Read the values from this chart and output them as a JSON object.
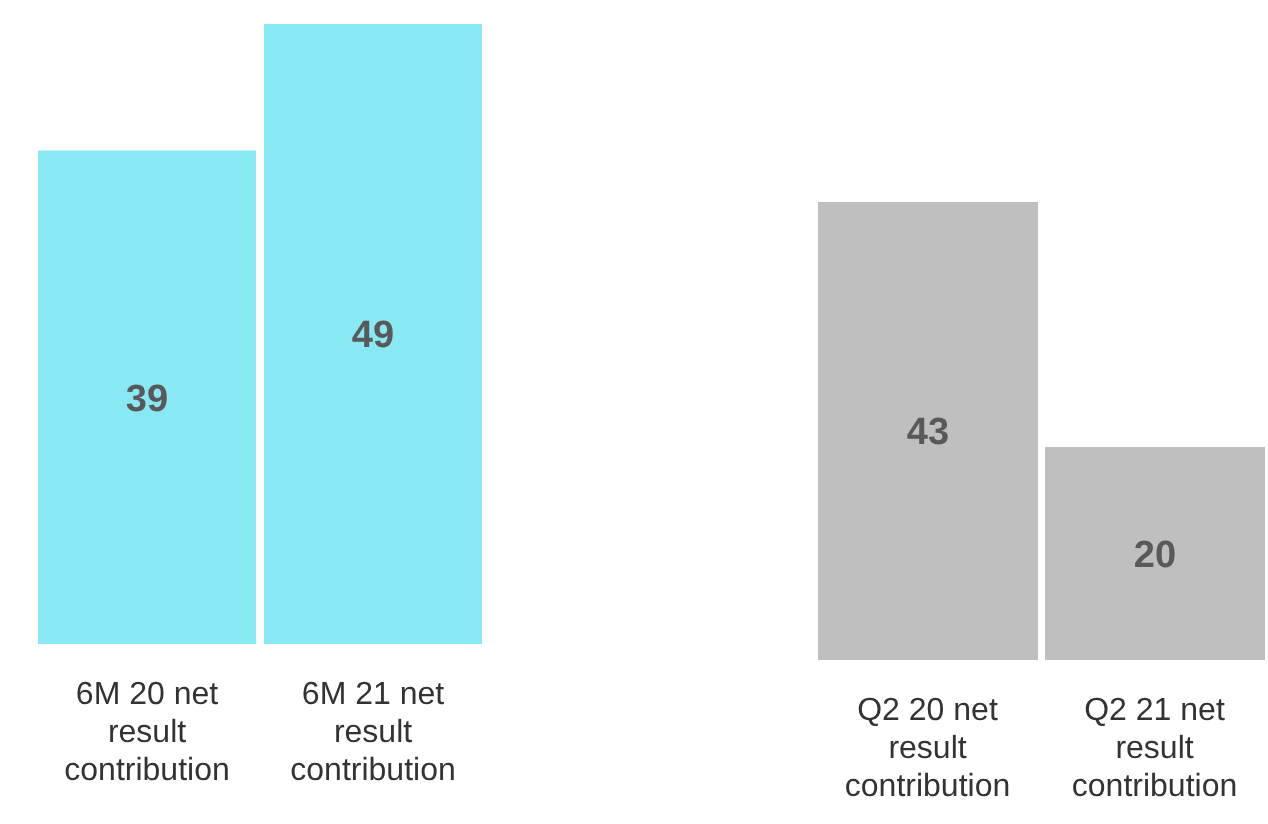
{
  "chart_data": [
    {
      "type": "bar",
      "categories": [
        "6M 20 net result contribution",
        "6M 21 net result contribution"
      ],
      "values": [
        39,
        49
      ],
      "color": "#88e8f4",
      "data_labels": true
    },
    {
      "type": "bar",
      "categories": [
        "Q2 20 net result contribution",
        "Q2 21 net result contribution"
      ],
      "values": [
        43,
        20
      ],
      "color": "#bfbfbf",
      "data_labels": true
    }
  ]
}
